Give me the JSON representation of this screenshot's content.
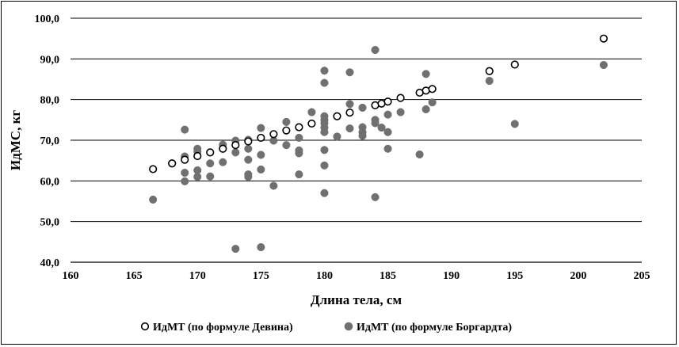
{
  "chart_data": {
    "type": "scatter",
    "xlabel": "Длина тела, см",
    "ylabel": "ИдМС, кг",
    "xlim": [
      160,
      205
    ],
    "ylim": [
      40,
      100
    ],
    "x_ticks": [
      160,
      165,
      170,
      175,
      180,
      185,
      190,
      195,
      200,
      205
    ],
    "x_tick_labels": [
      "160",
      "165",
      "170",
      "175",
      "180",
      "185",
      "190",
      "195",
      "200",
      "205"
    ],
    "y_ticks": [
      40,
      50,
      60,
      70,
      80,
      90,
      100
    ],
    "y_tick_labels": [
      "40,0",
      "50,0",
      "60,0",
      "70,0",
      "80,0",
      "90,0",
      "100,0"
    ],
    "grid": "horizontal",
    "legend_position": "bottom",
    "series": [
      {
        "name": "ИдМТ (по формуле Девина)",
        "marker": "open-circle",
        "color": "#000000",
        "points": [
          [
            166.5,
            62.9
          ],
          [
            168,
            64.3
          ],
          [
            169,
            65.2
          ],
          [
            170,
            66.1
          ],
          [
            171,
            67.0
          ],
          [
            172,
            67.9
          ],
          [
            173,
            68.8
          ],
          [
            174,
            69.7
          ],
          [
            175,
            70.6
          ],
          [
            176,
            71.5
          ],
          [
            177,
            72.4
          ],
          [
            178,
            73.2
          ],
          [
            179,
            74.1
          ],
          [
            181,
            75.9
          ],
          [
            182,
            76.8
          ],
          [
            184,
            78.6
          ],
          [
            184.5,
            79.0
          ],
          [
            185,
            79.5
          ],
          [
            186,
            80.4
          ],
          [
            187.5,
            81.7
          ],
          [
            188,
            82.2
          ],
          [
            188.5,
            82.6
          ],
          [
            193,
            87.0
          ],
          [
            195,
            88.6
          ],
          [
            202,
            95.0
          ]
        ]
      },
      {
        "name": "ИдМТ (по формуле Боргардта)",
        "marker": "filled-circle",
        "color": "#707070",
        "points": [
          [
            166.5,
            55.4
          ],
          [
            168,
            64.3
          ],
          [
            169,
            72.6
          ],
          [
            169,
            66.0
          ],
          [
            169,
            62.0
          ],
          [
            169,
            59.9
          ],
          [
            170,
            67.9
          ],
          [
            170,
            67.2
          ],
          [
            170,
            62.6
          ],
          [
            170,
            61.0
          ],
          [
            171,
            64.3
          ],
          [
            171,
            61.1
          ],
          [
            172,
            68.9
          ],
          [
            172,
            64.6
          ],
          [
            173,
            69.9
          ],
          [
            173,
            67.0
          ],
          [
            173,
            43.3
          ],
          [
            174,
            70.1
          ],
          [
            174,
            67.9
          ],
          [
            174,
            65.2
          ],
          [
            174,
            61.6
          ],
          [
            174,
            61.0
          ],
          [
            175,
            73.0
          ],
          [
            175,
            66.4
          ],
          [
            175,
            62.8
          ],
          [
            175,
            43.7
          ],
          [
            176,
            69.9
          ],
          [
            176,
            58.8
          ],
          [
            177,
            74.5
          ],
          [
            177,
            68.8
          ],
          [
            178,
            73.2
          ],
          [
            178,
            70.6
          ],
          [
            178,
            67.5
          ],
          [
            178,
            66.8
          ],
          [
            178,
            61.6
          ],
          [
            179,
            76.9
          ],
          [
            180,
            87.1
          ],
          [
            180,
            84.1
          ],
          [
            180,
            75.9
          ],
          [
            180,
            75.0
          ],
          [
            180,
            74.2
          ],
          [
            180,
            73.1
          ],
          [
            180,
            72.0
          ],
          [
            180,
            67.6
          ],
          [
            180,
            63.8
          ],
          [
            180,
            57.0
          ],
          [
            181,
            70.9
          ],
          [
            182,
            86.7
          ],
          [
            182,
            78.9
          ],
          [
            182,
            72.9
          ],
          [
            183,
            78.0
          ],
          [
            183,
            73.2
          ],
          [
            183,
            72.0
          ],
          [
            183,
            71.1
          ],
          [
            184,
            92.2
          ],
          [
            184,
            75.0
          ],
          [
            184,
            74.2
          ],
          [
            184,
            56.0
          ],
          [
            184.5,
            73.1
          ],
          [
            185,
            76.3
          ],
          [
            185,
            72.0
          ],
          [
            185,
            67.9
          ],
          [
            186,
            76.9
          ],
          [
            187.5,
            66.5
          ],
          [
            188,
            86.3
          ],
          [
            188,
            77.6
          ],
          [
            188.5,
            79.3
          ],
          [
            193,
            84.6
          ],
          [
            195,
            74.0
          ],
          [
            202,
            88.5
          ]
        ]
      }
    ]
  }
}
